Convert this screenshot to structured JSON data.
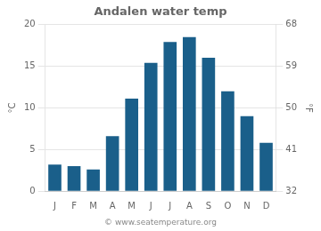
{
  "chart_data": {
    "type": "bar",
    "title": "Andalen water temp",
    "categories": [
      "J",
      "F",
      "M",
      "A",
      "M",
      "J",
      "J",
      "A",
      "S",
      "O",
      "N",
      "D"
    ],
    "values": [
      3.2,
      3.0,
      2.6,
      6.6,
      11.1,
      15.4,
      17.9,
      18.5,
      16.0,
      12.0,
      9.0,
      5.8
    ],
    "color": "#1a5f8a",
    "ylim": [
      0,
      20
    ],
    "yticks": [
      0,
      5,
      10,
      15,
      20
    ],
    "y2lim": [
      32,
      68
    ],
    "y2ticks": [
      32,
      41,
      50,
      59,
      68
    ],
    "ylabel": "°C",
    "y2label": "°F",
    "grid": true,
    "annotations": [
      "© www.seatemperature.org"
    ]
  }
}
